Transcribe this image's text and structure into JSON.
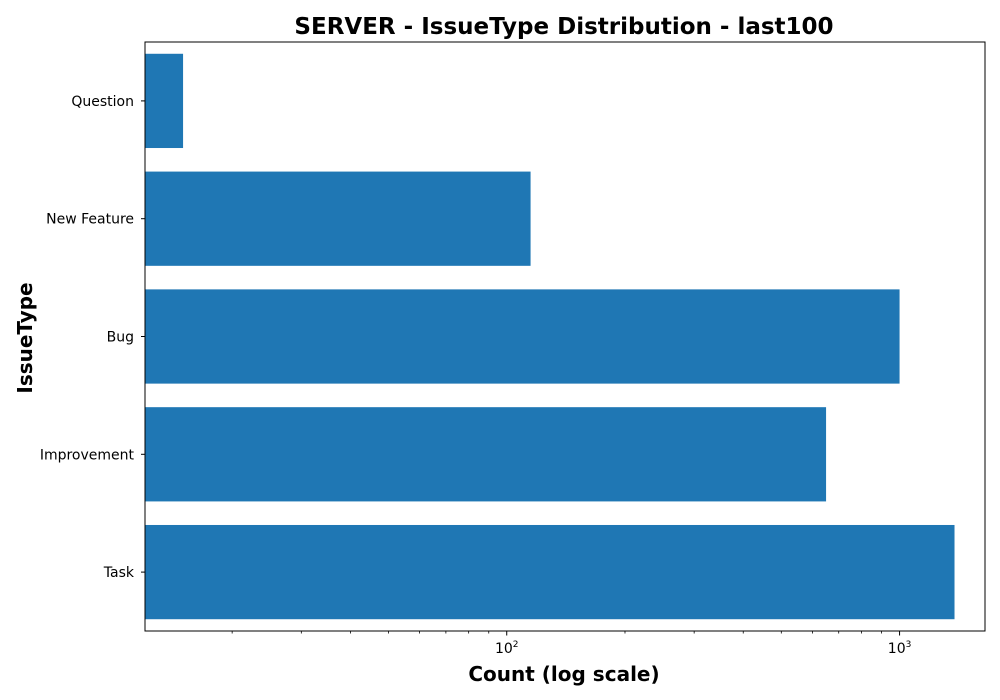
{
  "chart_data": {
    "type": "bar",
    "orientation": "horizontal",
    "title": "SERVER - IssueType Distribution - last100",
    "xlabel": "Count (log scale)",
    "ylabel": "IssueType",
    "xscale": "log",
    "xlim": [
      12,
      1650
    ],
    "categories": [
      "Task",
      "Improvement",
      "Bug",
      "New Feature",
      "Question"
    ],
    "values": [
      1380,
      650,
      1000,
      115,
      15
    ],
    "x_ticks": [
      {
        "value": 100,
        "base": "10",
        "exp": "2"
      },
      {
        "value": 1000,
        "base": "10",
        "exp": "3"
      }
    ],
    "bar_color": "#1f77b4",
    "grid": false,
    "legend": "none"
  }
}
